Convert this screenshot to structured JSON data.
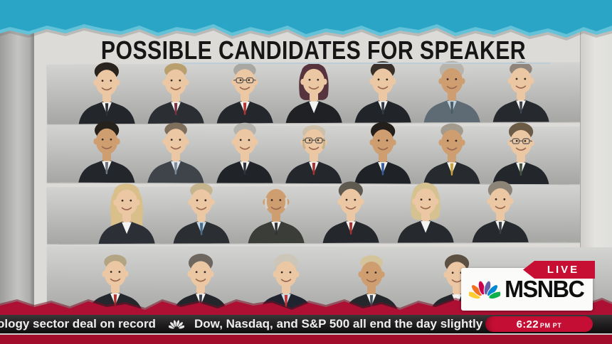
{
  "header": {
    "title": "POSSIBLE CANDIDATES FOR SPEAKER"
  },
  "branding": {
    "live_label": "LIVE",
    "network": "MSNBC"
  },
  "ticker": {
    "left_text": "ology sector deal on record",
    "right_text": "Dow, Nasdaq, and S&P 500 all end the day slightly",
    "time": "6:22",
    "time_suffix": "PM PT"
  },
  "colors": {
    "teal_band": "#2aa5c6",
    "teal_light": "#63c2d8",
    "paper": "#dcdbd8",
    "torn_red": "#ad1032",
    "bottom_red": "#a30d2c",
    "ticker_dark": "#1c1a1a",
    "live_red": "#c60f33",
    "time_red": "#c40e33",
    "title_underline": "#bccdd8",
    "peacock": [
      "#fccc30",
      "#f37021",
      "#cc004c",
      "#6460aa",
      "#0089d0",
      "#0db14b"
    ]
  },
  "grid": {
    "rows": [
      {
        "people": [
          {
            "style": "m-full",
            "hair": "#2a241f",
            "skin": "light",
            "suit": "#23262b",
            "shirt": "#f3f3f1",
            "tie": "#2e3238",
            "glasses": false
          },
          {
            "style": "m-receding",
            "hair": "#b99f6e",
            "skin": "light",
            "suit": "#2b2e33",
            "shirt": "#f3f3f1",
            "tie": "#7c3040",
            "glasses": false
          },
          {
            "style": "m-receding",
            "hair": "#a9a7a2",
            "skin": "light",
            "suit": "#24272c",
            "shirt": "#f3f3f1",
            "tie": "#b23434",
            "glasses": true
          },
          {
            "style": "f-bob",
            "hair": "#57333d",
            "skin": "light",
            "suit": "#1f2125",
            "shirt": "#f3f3f1",
            "tie": null,
            "glasses": false
          },
          {
            "style": "m-full",
            "hair": "#39302a",
            "skin": "light",
            "suit": "#212428",
            "shirt": "#f3f3f1",
            "tie": "#343b44",
            "glasses": false
          },
          {
            "style": "m-full",
            "hair": "#b9b4ab",
            "skin": "tan",
            "suit": "#5e6b74",
            "shirt": "#bcd0de",
            "tie": "#4a5a66",
            "glasses": false
          },
          {
            "style": "m-receding",
            "hair": "#8f857a",
            "skin": "light",
            "suit": "#26292e",
            "shirt": "#f3f3f1",
            "tie": "#3c4450",
            "glasses": false
          }
        ]
      },
      {
        "people": [
          {
            "style": "m-full",
            "hair": "#27211c",
            "skin": "tan",
            "suit": "#23262b",
            "shirt": "#f3f3f1",
            "tie": "#6b7480",
            "glasses": false
          },
          {
            "style": "m-receding",
            "hair": "#7d6f5c",
            "skin": "light",
            "suit": "#3f444a",
            "shirt": "#dfe7ed",
            "tie": "#7d8a99",
            "glasses": false
          },
          {
            "style": "m-receding",
            "hair": "#b5b3ae",
            "skin": "light",
            "suit": "#202328",
            "shirt": "#f3f3f1",
            "tie": "#2f333a",
            "glasses": false
          },
          {
            "style": "m-bald",
            "hair": "#c9b288",
            "skin": "light",
            "suit": "#24272c",
            "shirt": "#f3f3f1",
            "tie": "#a83232",
            "glasses": true
          },
          {
            "style": "m-full",
            "hair": "#241f1b",
            "skin": "tan",
            "suit": "#1f2226",
            "shirt": "#f3f3f1",
            "tie": "#3a5f9e",
            "glasses": false
          },
          {
            "style": "m-receding",
            "hair": "#a29a8c",
            "skin": "tan",
            "suit": "#272a2f",
            "shirt": "#f3f3f1",
            "tie": "#c9a23a",
            "glasses": false
          },
          {
            "style": "m-full",
            "hair": "#6b5a45",
            "skin": "light",
            "suit": "#23262b",
            "shirt": "#f3f3f1",
            "tie": "#45523f",
            "glasses": true
          }
        ]
      },
      {
        "people": [
          {
            "style": "f-long",
            "hair": "#d9bf8a",
            "skin": "light",
            "suit": "#2c2f35",
            "shirt": "#f3f3f1",
            "tie": null,
            "glasses": false
          },
          {
            "style": "m-receding",
            "hair": "#c4b58e",
            "skin": "light",
            "suit": "#2b2e33",
            "shirt": "#c5d8e6",
            "tie": "#4a6d8c",
            "glasses": false
          },
          {
            "style": "m-bald",
            "hair": "#d3d0c8",
            "skin": "tan",
            "suit": "#3a3d38",
            "shirt": "#f3f3f1",
            "tie": "#2f333a",
            "glasses": false
          },
          {
            "style": "m-full",
            "hair": "#5f5a50",
            "skin": "light",
            "suit": "#24272c",
            "shirt": "#f3f3f1",
            "tie": "#a83232",
            "glasses": false
          },
          {
            "style": "f-bob",
            "hair": "#d6c291",
            "skin": "light",
            "suit": "#26292e",
            "shirt": "#f3f3f1",
            "tie": null,
            "glasses": false
          },
          {
            "style": "m-full",
            "hair": "#8c8577",
            "skin": "light",
            "suit": "#26292e",
            "shirt": "#f3f3f1",
            "tie": "#3a3f45",
            "glasses": false
          }
        ]
      },
      {
        "people": [
          {
            "style": "m-receding",
            "hair": "#b3a484",
            "skin": "light",
            "suit": "#24272c",
            "shirt": "#f3f3f1",
            "tie": "#b03030",
            "glasses": false
          },
          {
            "style": "m-full",
            "hair": "#6e675f",
            "skin": "light",
            "suit": "#23262b",
            "shirt": "#f3f3f1",
            "tie": "#37404b",
            "glasses": false
          },
          {
            "style": "m-full",
            "hair": "#ccc6b8",
            "skin": "light",
            "suit": "#1f2430",
            "shirt": "#cfe0ec",
            "tie": "#c03434",
            "glasses": false
          },
          {
            "style": "m-receding",
            "hair": "#d3c49c",
            "skin": "tan",
            "suit": "#24272c",
            "shirt": "#f3f3f1",
            "tie": "#46505c",
            "glasses": false
          },
          {
            "style": "m-full",
            "hair": "#5c5042",
            "skin": "light",
            "suit": "#23262b",
            "shirt": "#f3f3f1",
            "tie": null,
            "glasses": false
          }
        ]
      }
    ]
  }
}
